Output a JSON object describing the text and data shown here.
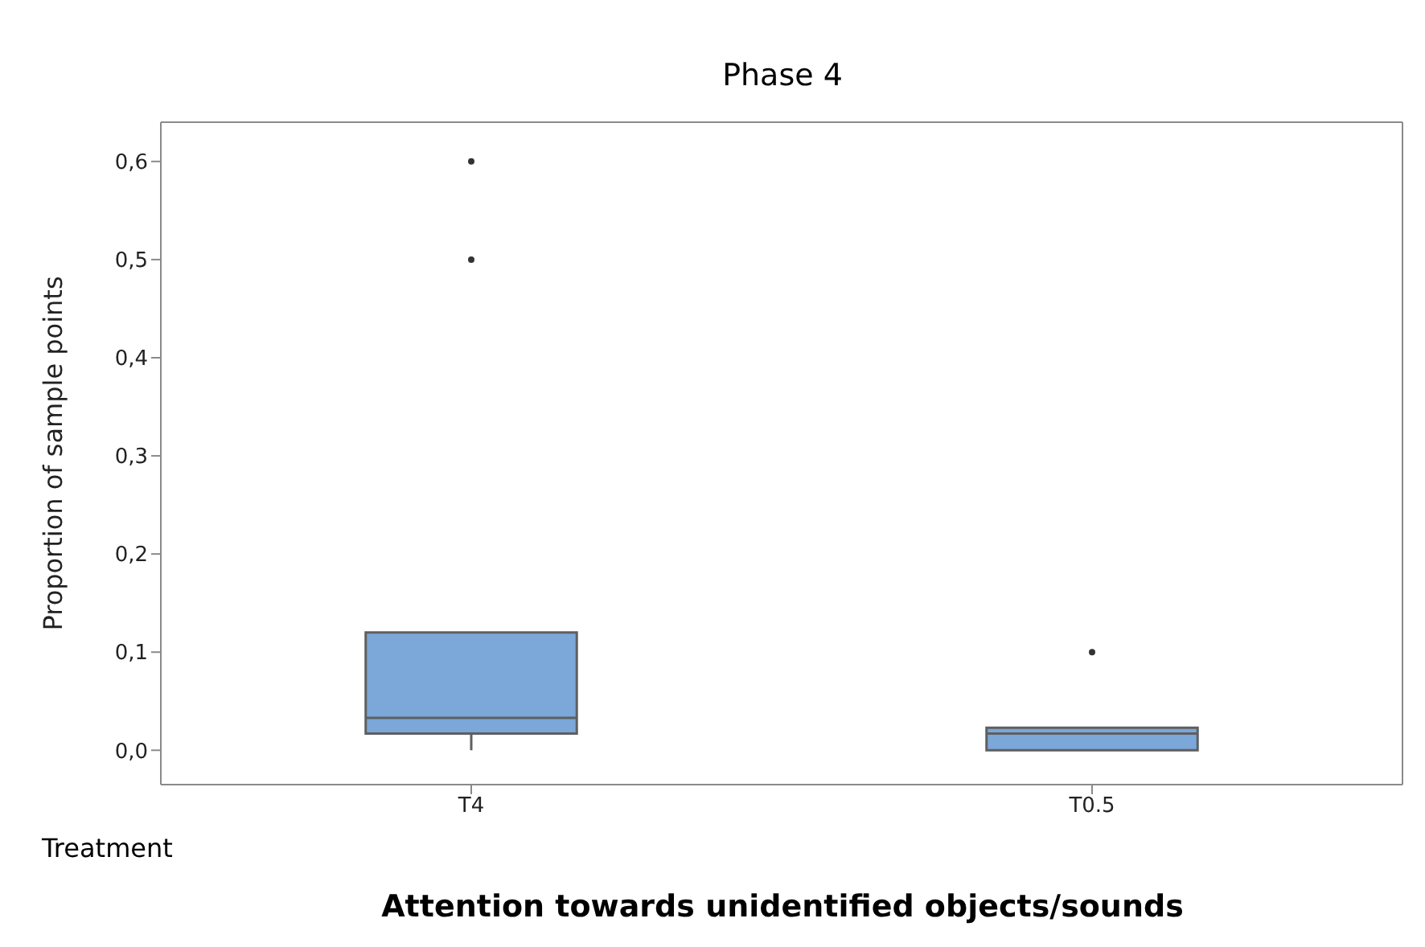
{
  "chart_data": {
    "type": "box",
    "title": "Phase 4",
    "xlabel": "Attention towards unidentified objects/sounds",
    "ylabel": "Proportion of sample points",
    "annotations": [
      "Treatment"
    ],
    "categories": [
      "T4",
      "T0.5"
    ],
    "color": "#7ba7d9",
    "boxes": [
      {
        "low": 0,
        "q1": 0.017,
        "median": 0.033,
        "q3": 0.12,
        "high": 0.12,
        "outliers": [
          0.5,
          0.6
        ]
      },
      {
        "low": 0,
        "q1": 0,
        "median": 0.017,
        "q3": 0.023,
        "high": 0.023,
        "outliers": [
          0.1
        ]
      }
    ],
    "ylim": [
      -0.035,
      0.64
    ],
    "yticks": [
      {
        "value": 0,
        "label": "0,0"
      },
      {
        "value": 0.1,
        "label": "0,1"
      },
      {
        "value": 0.2,
        "label": "0,2"
      },
      {
        "value": 0.3,
        "label": "0,3"
      },
      {
        "value": 0.4,
        "label": "0,4"
      },
      {
        "value": 0.5,
        "label": "0,5"
      },
      {
        "value": 0.6,
        "label": "0,6"
      }
    ]
  }
}
